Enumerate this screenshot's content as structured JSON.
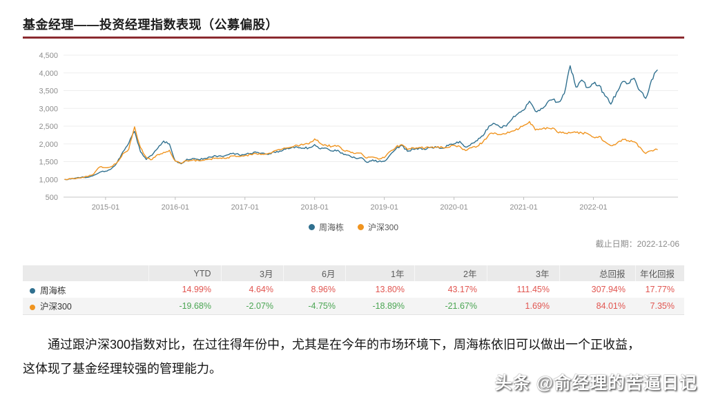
{
  "header": {
    "title": "基金经理——投资经理指数表现（公募偏股）",
    "underline_color": "#8b2a2f"
  },
  "chart_data": {
    "type": "line",
    "title": "",
    "xlabel": "",
    "ylabel": "",
    "x_unit": "month",
    "x_start": "2014-06",
    "x_end": "2022-12",
    "x_ticks": [
      {
        "label": "2015-01",
        "month_index": 7
      },
      {
        "label": "2016-01",
        "month_index": 19
      },
      {
        "label": "2017-01",
        "month_index": 31
      },
      {
        "label": "2018-01",
        "month_index": 43
      },
      {
        "label": "2019-01",
        "month_index": 55
      },
      {
        "label": "2020-01",
        "month_index": 67
      },
      {
        "label": "2021-01",
        "month_index": 79
      },
      {
        "label": "2022-01",
        "month_index": 91
      }
    ],
    "ylim": [
      500,
      4500
    ],
    "y_ticks": [
      "500",
      "1,000",
      "1,500",
      "2,000",
      "2,500",
      "3,000",
      "3,500",
      "4,000",
      "4,500"
    ],
    "grid": true,
    "legend_position": "bottom",
    "series": [
      {
        "name": "周海栋",
        "color": "#30708f",
        "monthly_values": [
          1000,
          1010,
          1040,
          1070,
          1060,
          1120,
          1200,
          1230,
          1300,
          1480,
          1780,
          2020,
          2350,
          1780,
          1560,
          1680,
          1880,
          2080,
          2000,
          1520,
          1440,
          1570,
          1590,
          1560,
          1590,
          1630,
          1660,
          1650,
          1690,
          1740,
          1690,
          1700,
          1730,
          1760,
          1740,
          1700,
          1770,
          1800,
          1850,
          1890,
          1910,
          1880,
          1890,
          1980,
          1860,
          1880,
          1800,
          1820,
          1700,
          1670,
          1600,
          1610,
          1480,
          1550,
          1500,
          1510,
          1690,
          1860,
          1960,
          1790,
          1850,
          1880,
          1840,
          1910,
          1900,
          1880,
          1950,
          2000,
          2070,
          1910,
          2010,
          2090,
          2230,
          2500,
          2570,
          2460,
          2500,
          2700,
          2850,
          2950,
          3200,
          2920,
          3000,
          3150,
          3250,
          3180,
          3420,
          4200,
          3600,
          3800,
          3585,
          3700,
          3650,
          3350,
          3120,
          3450,
          3750,
          3700,
          3850,
          3500,
          3280,
          3800,
          4079
        ]
      },
      {
        "name": "沪深300",
        "color": "#f0941f",
        "monthly_values": [
          1000,
          1020,
          1030,
          1060,
          1080,
          1160,
          1350,
          1330,
          1360,
          1480,
          1730,
          1850,
          2480,
          1900,
          1620,
          1560,
          1700,
          1760,
          1820,
          1520,
          1460,
          1530,
          1540,
          1530,
          1540,
          1570,
          1600,
          1590,
          1610,
          1660,
          1640,
          1670,
          1700,
          1720,
          1710,
          1730,
          1800,
          1840,
          1880,
          1910,
          1960,
          1970,
          2000,
          2140,
          2010,
          1960,
          1930,
          1950,
          1810,
          1790,
          1730,
          1740,
          1600,
          1630,
          1570,
          1610,
          1790,
          1910,
          1980,
          1840,
          1890,
          1900,
          1880,
          1900,
          1910,
          1900,
          1900,
          1960,
          1930,
          1810,
          1890,
          1930,
          2060,
          2260,
          2310,
          2260,
          2290,
          2360,
          2400,
          2520,
          2630,
          2390,
          2410,
          2460,
          2450,
          2310,
          2300,
          2310,
          2320,
          2310,
          2290,
          2190,
          2210,
          2060,
          1950,
          2010,
          2130,
          2090,
          2060,
          1910,
          1730,
          1810,
          1840
        ]
      }
    ]
  },
  "as_of": {
    "label": "截止日期：2022-12-06"
  },
  "table": {
    "columns": [
      "",
      "YTD",
      "3月",
      "6月",
      "1年",
      "2年",
      "3年",
      "总回报",
      "年化回报"
    ],
    "positive_color": "#e15550",
    "negative_color": "#4aa552",
    "rows": [
      {
        "name": "周海栋",
        "dot_color": "#30708f",
        "values": [
          "14.99%",
          "4.64%",
          "8.96%",
          "13.80%",
          "43.17%",
          "111.45%",
          "307.94%",
          "17.77%"
        ]
      },
      {
        "name": "沪深300",
        "dot_color": "#f0941f",
        "values": [
          "-19.68%",
          "-2.07%",
          "-4.75%",
          "-18.89%",
          "-21.67%",
          "1.69%",
          "84.01%",
          "7.35%"
        ]
      }
    ]
  },
  "commentary": {
    "line1": "通过跟沪深300指数对比，在过往得年份中，尤其是在今年的市场环境下，周海栋依旧可以做出一个正收益，",
    "line2": "这体现了基金经理较强的管理能力。"
  },
  "watermark": {
    "text": "头条 @俞经理的苦逼日记"
  }
}
